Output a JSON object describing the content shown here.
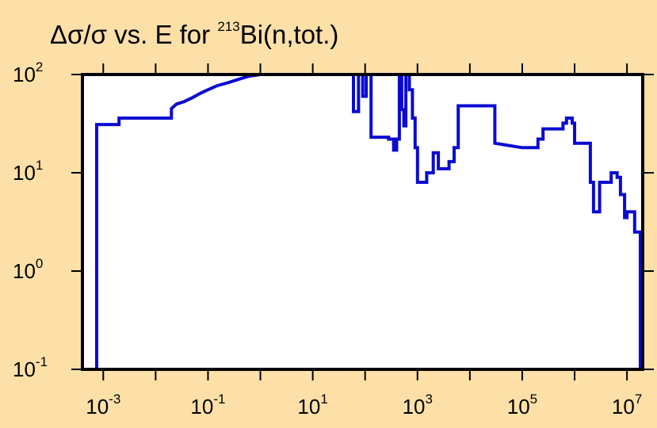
{
  "chart_data": {
    "type": "line",
    "title": {
      "prefix": "Δσ/σ vs. E for ",
      "superscript": "213",
      "suffix": "Bi(n,tot.)"
    },
    "xlabel": "",
    "ylabel": "",
    "x_scale": "log",
    "y_scale": "log",
    "xlim": [
      0.0004,
      20000000
    ],
    "ylim": [
      0.1,
      100
    ],
    "grid": false,
    "legend": "none",
    "x_ticks": [
      {
        "base": "10",
        "exp": "-3",
        "value": 0.001
      },
      {
        "base": "10",
        "exp": "-1",
        "value": 0.1
      },
      {
        "base": "10",
        "exp": "1",
        "value": 10
      },
      {
        "base": "10",
        "exp": "3",
        "value": 1000
      },
      {
        "base": "10",
        "exp": "5",
        "value": 100000
      },
      {
        "base": "10",
        "exp": "7",
        "value": 10000000
      }
    ],
    "y_ticks": [
      {
        "base": "10",
        "exp": "2",
        "value": 100
      },
      {
        "base": "10",
        "exp": "1",
        "value": 10
      },
      {
        "base": "10",
        "exp": "0",
        "value": 1
      },
      {
        "base": "10",
        "exp": "-1",
        "value": 0.1
      }
    ],
    "series": [
      {
        "color": "#0a0ad2",
        "step": true,
        "points": [
          [
            0.00075,
            0.1
          ],
          [
            0.00075,
            31
          ],
          [
            0.002,
            31
          ],
          [
            0.002,
            36
          ],
          [
            0.02,
            36
          ],
          [
            0.02,
            45
          ],
          [
            0.025,
            50
          ],
          [
            0.035,
            53
          ],
          [
            0.05,
            58
          ],
          [
            0.07,
            64
          ],
          [
            0.1,
            70
          ],
          [
            0.15,
            77
          ],
          [
            0.25,
            83
          ],
          [
            0.4,
            90
          ],
          [
            0.6,
            96
          ],
          [
            1,
            100
          ],
          [
            60,
            100
          ],
          [
            60,
            42
          ],
          [
            75,
            42
          ],
          [
            75,
            100
          ],
          [
            90,
            100
          ],
          [
            90,
            60
          ],
          [
            105,
            60
          ],
          [
            105,
            100
          ],
          [
            130,
            100
          ],
          [
            130,
            23
          ],
          [
            280,
            23
          ],
          [
            280,
            22
          ],
          [
            350,
            22
          ],
          [
            350,
            17
          ],
          [
            400,
            17
          ],
          [
            400,
            22
          ],
          [
            450,
            22
          ],
          [
            450,
            100
          ],
          [
            500,
            100
          ],
          [
            500,
            44
          ],
          [
            550,
            44
          ],
          [
            550,
            30
          ],
          [
            600,
            30
          ],
          [
            600,
            100
          ],
          [
            700,
            100
          ],
          [
            700,
            70
          ],
          [
            800,
            70
          ],
          [
            800,
            36
          ],
          [
            900,
            36
          ],
          [
            900,
            18
          ],
          [
            1000,
            18
          ],
          [
            1000,
            8
          ],
          [
            1500,
            8
          ],
          [
            1500,
            10
          ],
          [
            2000,
            10
          ],
          [
            2000,
            16
          ],
          [
            2500,
            16
          ],
          [
            2500,
            11
          ],
          [
            4000,
            11
          ],
          [
            4000,
            13
          ],
          [
            5000,
            13
          ],
          [
            5000,
            18
          ],
          [
            6000,
            18
          ],
          [
            6000,
            48
          ],
          [
            30000,
            48
          ],
          [
            30000,
            20
          ],
          [
            100000,
            18
          ],
          [
            200000,
            18
          ],
          [
            200000,
            22
          ],
          [
            250000,
            22
          ],
          [
            250000,
            28
          ],
          [
            600000,
            28
          ],
          [
            600000,
            32
          ],
          [
            700000,
            32
          ],
          [
            700000,
            36
          ],
          [
            900000,
            36
          ],
          [
            900000,
            32
          ],
          [
            1000000,
            32
          ],
          [
            1000000,
            20
          ],
          [
            2000000,
            20
          ],
          [
            2000000,
            8
          ],
          [
            2300000,
            8
          ],
          [
            2300000,
            4
          ],
          [
            3000000,
            4
          ],
          [
            3000000,
            8
          ],
          [
            5000000,
            8
          ],
          [
            5000000,
            10
          ],
          [
            6500000,
            10
          ],
          [
            6500000,
            9
          ],
          [
            7500000,
            9
          ],
          [
            7500000,
            6
          ],
          [
            9000000,
            6
          ],
          [
            9000000,
            3.5
          ],
          [
            10000000,
            3.5
          ],
          [
            10000000,
            4
          ],
          [
            14000000,
            4
          ],
          [
            14000000,
            2.5
          ],
          [
            18000000,
            2.5
          ],
          [
            18000000,
            0.1
          ]
        ]
      }
    ]
  }
}
